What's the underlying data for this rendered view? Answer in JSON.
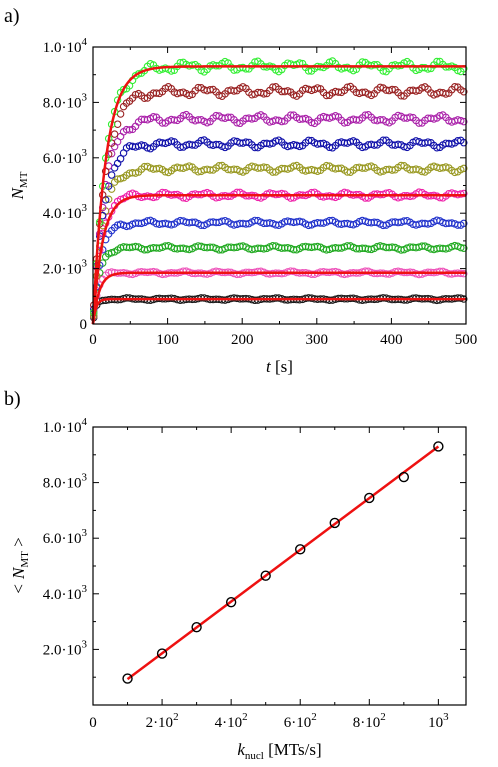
{
  "chart_data": [
    {
      "panel": "a)",
      "type": "scatter",
      "xlabel": {
        "main": "t",
        "unit": " [s]"
      },
      "ylabel": {
        "main": "N",
        "sub": "MT"
      },
      "xlim": [
        0,
        500
      ],
      "ylim": [
        0,
        10000
      ],
      "xticks": [
        "0",
        "100",
        "200",
        "300",
        "400",
        "500"
      ],
      "yticks": [
        {
          "value": 0,
          "base": "0",
          "exp": ""
        },
        {
          "value": 2000,
          "base": "2.0·10",
          "exp": "3"
        },
        {
          "value": 4000,
          "base": "4.0·10",
          "exp": "3"
        },
        {
          "value": 6000,
          "base": "6.0·10",
          "exp": "3"
        },
        {
          "value": 8000,
          "base": "8.0·10",
          "exp": "3"
        },
        {
          "value": 10000,
          "base": "1.0·10",
          "exp": "4"
        }
      ],
      "fit_color": "#ee1111",
      "fit_plateaus": [
        900,
        1850,
        4650,
        9300
      ],
      "series": [
        {
          "color": "#1a1a1a",
          "plateau": 900,
          "tau": 4
        },
        {
          "color": "#ee55bb",
          "plateau": 1850,
          "tau": 6
        },
        {
          "color": "#22aa22",
          "plateau": 2750,
          "tau": 8
        },
        {
          "color": "#2233cc",
          "plateau": 3650,
          "tau": 10
        },
        {
          "color": "#ee22aa",
          "plateau": 4650,
          "tau": 11
        },
        {
          "color": "#999922",
          "plateau": 5600,
          "tau": 13
        },
        {
          "color": "#1111aa",
          "plateau": 6500,
          "tau": 14
        },
        {
          "color": "#aa22aa",
          "plateau": 7400,
          "tau": 15
        },
        {
          "color": "#992222",
          "plateau": 8400,
          "tau": 16
        },
        {
          "color": "#33ee33",
          "plateau": 9300,
          "tau": 17
        }
      ]
    },
    {
      "panel": "b)",
      "type": "scatter",
      "xlabel": {
        "main": "k",
        "sub": "nucl",
        "unit": " [MTs/s]"
      },
      "ylabel": {
        "main": "< N",
        "sub": "MT",
        "unit": " >"
      },
      "xlim": [
        0,
        1080
      ],
      "ylim": [
        0,
        10000
      ],
      "xticks": [
        {
          "value": 0,
          "base": "0",
          "exp": ""
        },
        {
          "value": 200,
          "base": "2·10",
          "exp": "2"
        },
        {
          "value": 400,
          "base": "4·10",
          "exp": "2"
        },
        {
          "value": 600,
          "base": "6·10",
          "exp": "2"
        },
        {
          "value": 800,
          "base": "8·10",
          "exp": "2"
        },
        {
          "value": 1000,
          "base": "10",
          "exp": "3"
        }
      ],
      "yticks": [
        {
          "value": 2000,
          "base": "2.0·10",
          "exp": "3"
        },
        {
          "value": 4000,
          "base": "4.0·10",
          "exp": "3"
        },
        {
          "value": 6000,
          "base": "6.0·10",
          "exp": "3"
        },
        {
          "value": 8000,
          "base": "8.0·10",
          "exp": "3"
        },
        {
          "value": 10000,
          "base": "1.0·10",
          "exp": "4"
        }
      ],
      "x": [
        100,
        200,
        300,
        400,
        500,
        600,
        700,
        800,
        900,
        1000
      ],
      "y": [
        950,
        1850,
        2800,
        3700,
        4650,
        5600,
        6550,
        7450,
        8200,
        9300
      ],
      "fit": {
        "x": [
          100,
          1000
        ],
        "y": [
          930,
          9300
        ],
        "color": "#ee1111"
      }
    }
  ]
}
